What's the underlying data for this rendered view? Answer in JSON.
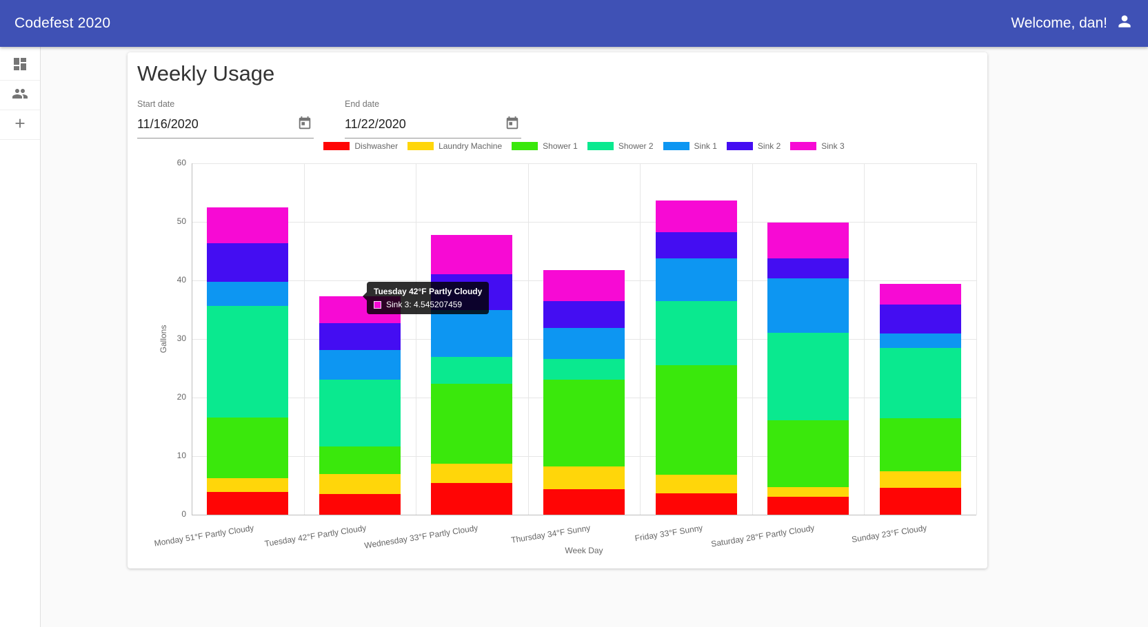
{
  "header": {
    "title": "Codefest 2020",
    "welcome": "Welcome, dan!"
  },
  "sidebar": {
    "items": [
      {
        "name": "dashboard"
      },
      {
        "name": "people"
      },
      {
        "name": "add"
      }
    ]
  },
  "page": {
    "title": "Weekly Usage"
  },
  "filters": {
    "start": {
      "label": "Start date",
      "value": "11/16/2020"
    },
    "end": {
      "label": "End date",
      "value": "11/22/2020"
    }
  },
  "tooltip": {
    "title": "Tuesday 42°F Partly Cloudy",
    "label": "Sink 3: 4.545207459",
    "color": "#f70ad4"
  },
  "chart_data": {
    "type": "bar",
    "stacked": true,
    "xlabel": "Week Day",
    "ylabel": "Gallons",
    "ylim": [
      0,
      60
    ],
    "ytick_step": 10,
    "legend_position": "top",
    "grid": true,
    "categories": [
      "Monday 51°F Partly Cloudy",
      "Tuesday 42°F Partly Cloudy",
      "Wednesday 33°F Partly Cloudy",
      "Thursday 34°F Sunny",
      "Friday 33°F Sunny",
      "Saturday 28°F Partly Cloudy",
      "Sunday 23°F Cloudy"
    ],
    "series": [
      {
        "name": "Dishwasher",
        "color": "#ff0505",
        "values": [
          3.9,
          3.5,
          5.4,
          4.4,
          3.6,
          3.1,
          4.6
        ]
      },
      {
        "name": "Laundry Machine",
        "color": "#ffd60a",
        "values": [
          2.3,
          3.5,
          3.3,
          3.8,
          3.2,
          1.6,
          2.8
        ]
      },
      {
        "name": "Shower 1",
        "color": "#3ae80c",
        "values": [
          10.4,
          4.6,
          13.7,
          14.9,
          18.7,
          11.4,
          9.1
        ]
      },
      {
        "name": "Shower 2",
        "color": "#0ae98f",
        "values": [
          19.0,
          11.5,
          4.6,
          3.5,
          11.0,
          15.0,
          12.0
        ]
      },
      {
        "name": "Sink 1",
        "color": "#0d96f2",
        "values": [
          4.2,
          5.0,
          7.9,
          5.3,
          7.3,
          9.3,
          2.4
        ]
      },
      {
        "name": "Sink 2",
        "color": "#440df2",
        "values": [
          6.5,
          4.6,
          6.2,
          4.6,
          4.4,
          3.4,
          5.0
        ]
      },
      {
        "name": "Sink 3",
        "color": "#f70ad4",
        "values": [
          6.2,
          4.545207459,
          6.7,
          5.3,
          5.4,
          6.1,
          3.5
        ]
      }
    ]
  }
}
